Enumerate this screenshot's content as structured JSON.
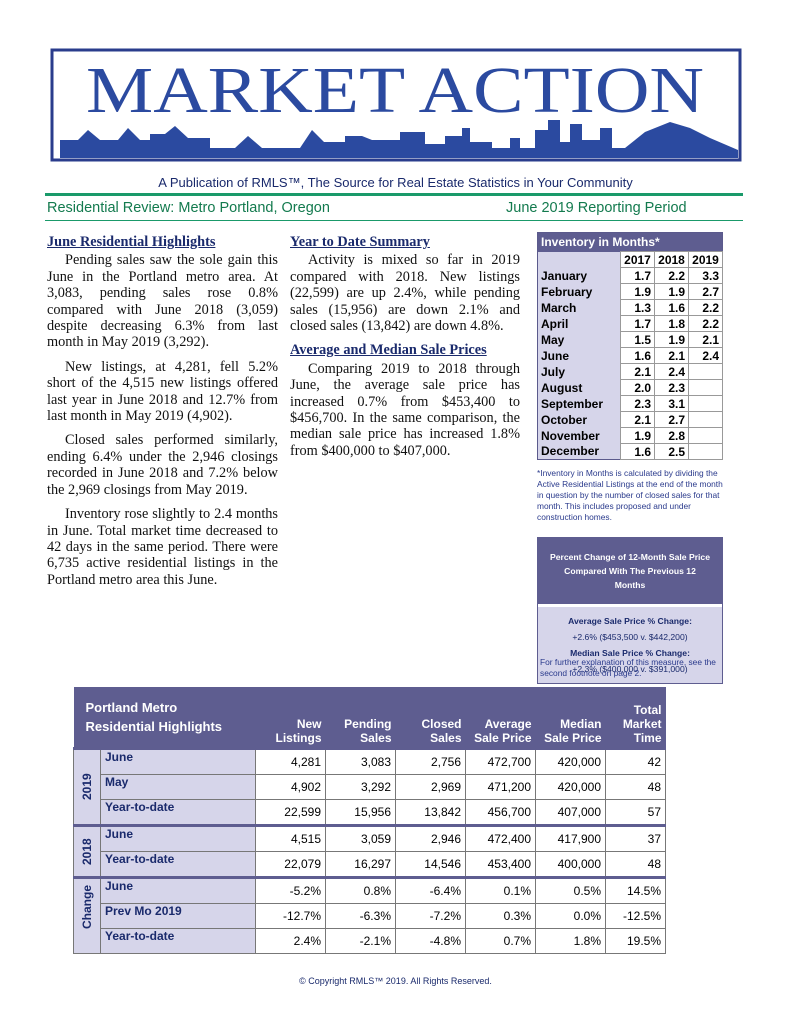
{
  "header": {
    "title": "MARKET ACTION",
    "publication": "A Publication of RMLS™, The Source for Real Estate Statistics in Your Community",
    "region": "Residential Review: Metro Portland, Oregon",
    "period": "June 2019 Reporting Period"
  },
  "highlights": {
    "heading": "June Residential Highlights",
    "paragraphs": [
      "Pending sales saw the sole gain this June in the Portland metro area. At 3,083, pending sales rose 0.8% compared with June 2018 (3,059) despite decreasing 6.3% from last month in May 2019 (3,292).",
      "New listings, at 4,281, fell 5.2% short of the 4,515 new listings offered last year in June 2018 and 12.7% from last month in May 2019 (4,902).",
      "Closed sales performed similarly, ending 6.4% under the 2,946 closings recorded in June 2018 and 7.2% below the 2,969 closings from May 2019.",
      "Inventory rose slightly to 2.4 months in June. Total market time decreased to 42 days in the same period. There were 6,735 active residential listings in the Portland metro area this June."
    ]
  },
  "ytd": {
    "heading": "Year to Date Summary",
    "paragraph": "Activity is mixed so far in 2019 compared with 2018. New listings (22,599) are up 2.4%, while pending sales (15,956) are down 2.1% and closed sales (13,842) are down 4.8%."
  },
  "prices": {
    "heading": "Average and Median Sale Prices",
    "paragraph": "Comparing 2019 to 2018 through June, the average sale price has increased 0.7% from $453,400 to $456,700. In the same comparison, the median sale price has increased 1.8% from $400,000 to $407,000."
  },
  "inventory": {
    "title": "Inventory in Months*",
    "columns": [
      "2017",
      "2018",
      "2019"
    ],
    "rows": [
      [
        "January",
        "1.7",
        "2.2",
        "3.3"
      ],
      [
        "February",
        "1.9",
        "1.9",
        "2.7"
      ],
      [
        "March",
        "1.3",
        "1.6",
        "2.2"
      ],
      [
        "April",
        "1.7",
        "1.8",
        "2.2"
      ],
      [
        "May",
        "1.5",
        "1.9",
        "2.1"
      ],
      [
        "June",
        "1.6",
        "2.1",
        "2.4"
      ],
      [
        "July",
        "2.1",
        "2.4",
        null
      ],
      [
        "August",
        "2.0",
        "2.3",
        null
      ],
      [
        "September",
        "2.3",
        "3.1",
        null
      ],
      [
        "October",
        "2.1",
        "2.7",
        null
      ],
      [
        "November",
        "1.9",
        "2.8",
        null
      ],
      [
        "December",
        "1.6",
        "2.5",
        null
      ]
    ],
    "note": "*Inventory in Months is calculated by dividing the Active Residential Listings at the end of the month in question by the number of closed sales for that month. This includes proposed and under construction homes."
  },
  "pct_change": {
    "title": "Percent Change of 12-Month Sale Price Compared With The Previous 12 Months",
    "avg_label": "Average Sale Price % Change:",
    "avg_value": "+2.6% ($453,500 v. $442,200)",
    "median_label": "Median Sale Price % Change:",
    "median_value": "+2.3% ($400,000 v. $391,000)",
    "footnote": "For further explanation of this measure, see the second footnote on page 2."
  },
  "table": {
    "title": "Portland Metro Residential Highlights",
    "columns": [
      "New Listings",
      "Pending Sales",
      "Closed Sales",
      "Average Sale Price",
      "Median Sale Price",
      "Total Market Time"
    ],
    "groups": [
      {
        "label": "2019",
        "rows": [
          [
            "June",
            "4,281",
            "3,083",
            "2,756",
            "472,700",
            "420,000",
            "42"
          ],
          [
            "May",
            "4,902",
            "3,292",
            "2,969",
            "471,200",
            "420,000",
            "48"
          ],
          [
            "Year-to-date",
            "22,599",
            "15,956",
            "13,842",
            "456,700",
            "407,000",
            "57"
          ]
        ]
      },
      {
        "label": "2018",
        "rows": [
          [
            "June",
            "4,515",
            "3,059",
            "2,946",
            "472,400",
            "417,900",
            "37"
          ],
          [
            "Year-to-date",
            "22,079",
            "16,297",
            "14,546",
            "453,400",
            "400,000",
            "48"
          ]
        ]
      },
      {
        "label": "Change",
        "rows": [
          [
            "June",
            "-5.2%",
            "0.8%",
            "-6.4%",
            "0.1%",
            "0.5%",
            "14.5%"
          ],
          [
            "Prev Mo 2019",
            "-12.7%",
            "-6.3%",
            "-7.2%",
            "0.3%",
            "0.0%",
            "-12.5%"
          ],
          [
            "Year-to-date",
            "2.4%",
            "-2.1%",
            "-4.8%",
            "0.7%",
            "1.8%",
            "19.5%"
          ]
        ]
      }
    ]
  },
  "copyright": "© Copyright RMLS™ 2019. All Rights Reserved."
}
